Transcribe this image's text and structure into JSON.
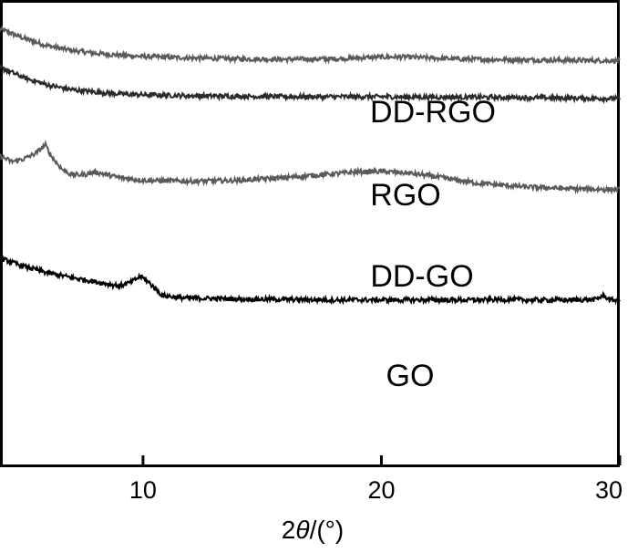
{
  "chart_data": {
    "type": "line",
    "title": "",
    "xlabel": {
      "prefix": "2",
      "symbol": "θ",
      "suffix": "/(°)"
    },
    "ylabel": "",
    "xlim": [
      4,
      30
    ],
    "xticks": [
      {
        "value": 10,
        "label": "10"
      },
      {
        "value": 20,
        "label": "20"
      },
      {
        "value": 30,
        "label": "30"
      }
    ],
    "y_ticks_shown": false,
    "grid": false,
    "series": [
      {
        "name": "DD-RGO",
        "color": "#5a5a5a",
        "x": [
          4,
          5,
          6,
          7,
          8,
          9,
          10,
          12,
          14,
          16,
          18,
          19,
          20,
          21,
          22,
          23,
          24,
          26,
          28,
          30
        ],
        "y": [
          0.938,
          0.918,
          0.902,
          0.892,
          0.886,
          0.882,
          0.879,
          0.876,
          0.874,
          0.873,
          0.874,
          0.876,
          0.878,
          0.878,
          0.876,
          0.874,
          0.873,
          0.872,
          0.871,
          0.87
        ]
      },
      {
        "name": "RGO",
        "color": "#2a2a2a",
        "x": [
          4,
          5,
          6,
          7,
          8,
          9,
          10,
          12,
          14,
          16,
          18,
          20,
          22,
          24,
          26,
          28,
          30
        ],
        "y": [
          0.856,
          0.834,
          0.818,
          0.808,
          0.803,
          0.799,
          0.797,
          0.795,
          0.794,
          0.793,
          0.793,
          0.793,
          0.792,
          0.792,
          0.791,
          0.79,
          0.789
        ]
      },
      {
        "name": "DD-GO",
        "color": "#5a5a5a",
        "x": [
          4,
          4.5,
          5,
          5.5,
          5.9,
          6.2,
          6.6,
          7,
          7.5,
          8,
          8.4,
          9,
          10,
          12,
          14,
          16,
          18,
          19,
          20,
          21,
          22,
          24,
          26,
          28,
          30
        ],
        "y": [
          0.666,
          0.654,
          0.66,
          0.672,
          0.69,
          0.662,
          0.638,
          0.626,
          0.626,
          0.632,
          0.627,
          0.62,
          0.614,
          0.612,
          0.614,
          0.62,
          0.628,
          0.632,
          0.633,
          0.63,
          0.624,
          0.608,
          0.6,
          0.596,
          0.594
        ]
      },
      {
        "name": "GO",
        "color": "#000000",
        "x": [
          4,
          5,
          6,
          7,
          8,
          9,
          9.5,
          9.9,
          10.3,
          10.8,
          11.5,
          12,
          14,
          16,
          18,
          20,
          22,
          24,
          25.5,
          26,
          28,
          29,
          29.3,
          29.6,
          30
        ],
        "y": [
          0.447,
          0.43,
          0.416,
          0.406,
          0.397,
          0.388,
          0.396,
          0.409,
          0.393,
          0.368,
          0.363,
          0.362,
          0.36,
          0.359,
          0.358,
          0.358,
          0.358,
          0.358,
          0.359,
          0.358,
          0.358,
          0.359,
          0.368,
          0.358,
          0.358
        ]
      }
    ]
  }
}
